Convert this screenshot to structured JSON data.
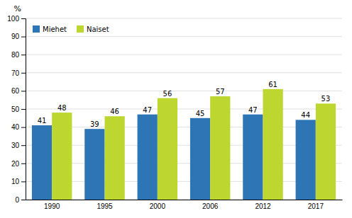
{
  "chart_data": {
    "type": "bar",
    "y_label": "%",
    "categories": [
      "1990",
      "1995",
      "2000",
      "2006",
      "2012",
      "2017"
    ],
    "series": [
      {
        "name": "Miehet",
        "color": "#2e75b6",
        "values": [
          41,
          39,
          47,
          45,
          47,
          44
        ]
      },
      {
        "name": "Naiset",
        "color": "#bdd630",
        "values": [
          48,
          46,
          56,
          57,
          61,
          53
        ]
      }
    ],
    "ylim": [
      0,
      100
    ],
    "yticks": [
      0,
      10,
      20,
      30,
      40,
      50,
      60,
      70,
      80,
      90,
      100
    ],
    "grid": true,
    "legend": "upper left",
    "data_labels": true
  }
}
